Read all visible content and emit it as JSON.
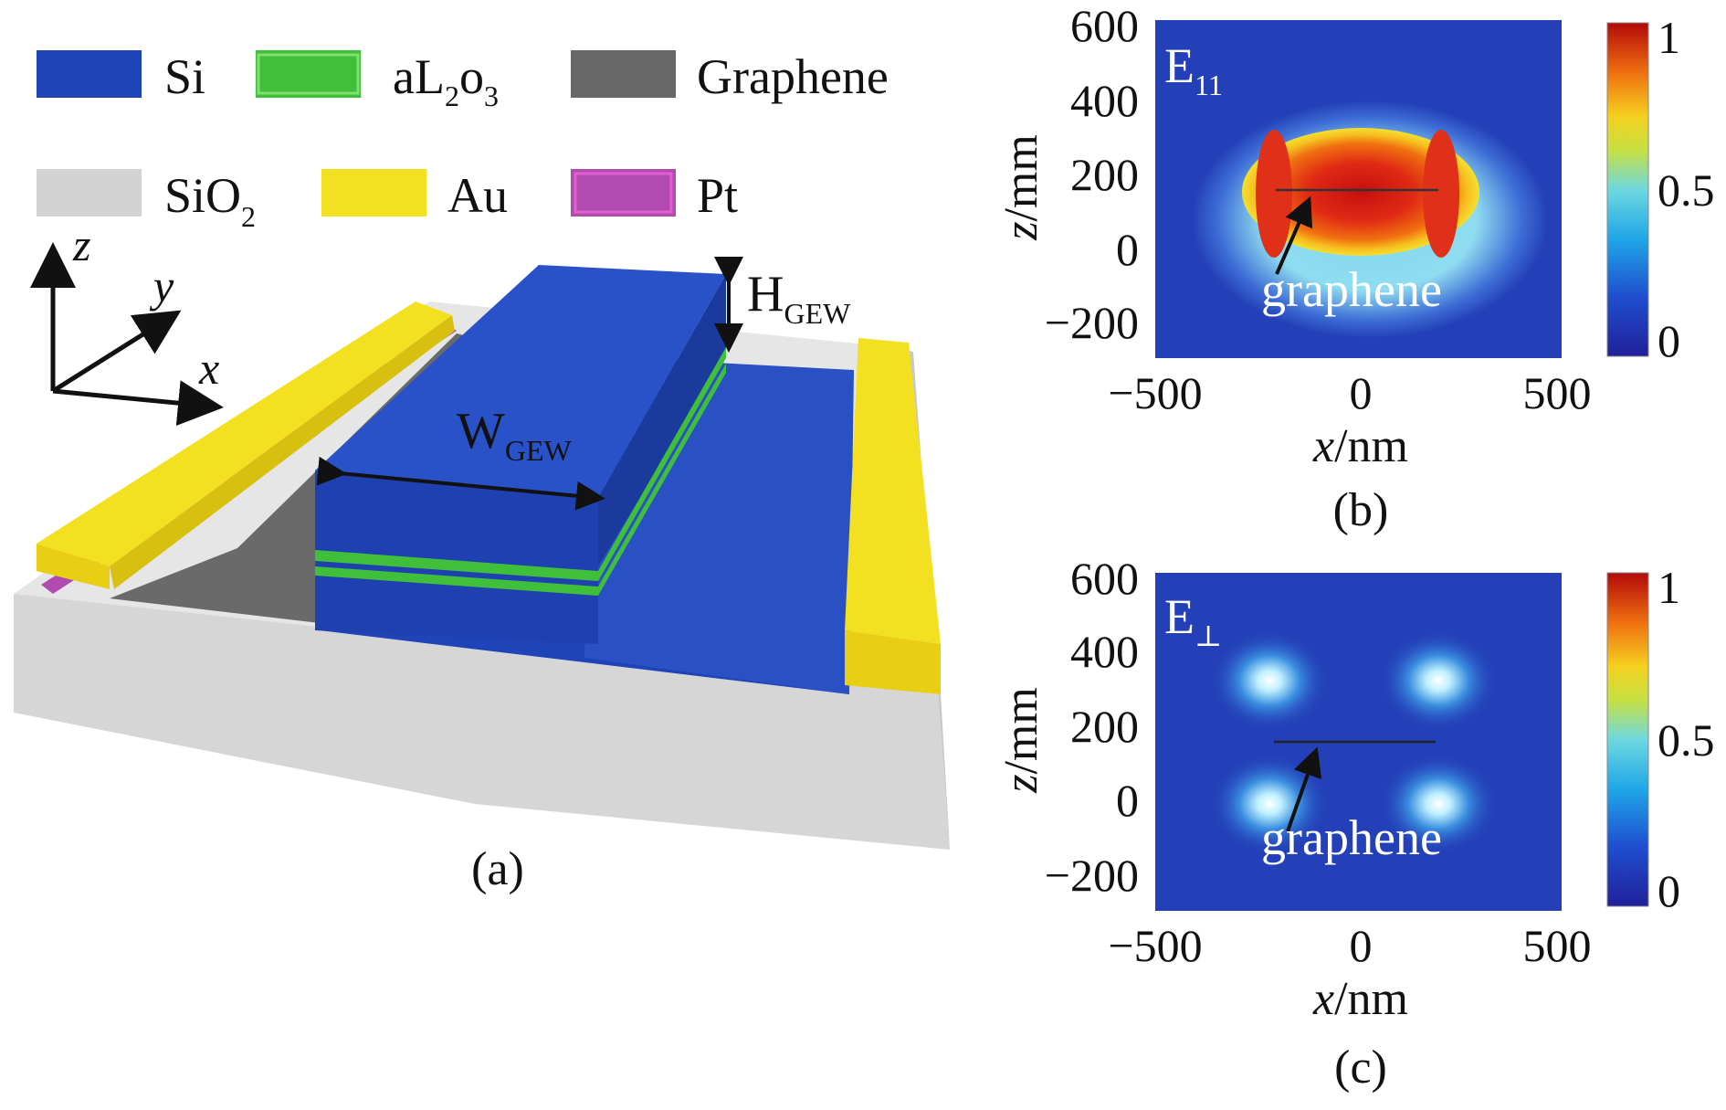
{
  "legend": {
    "items": [
      {
        "label": "Si",
        "sub": "",
        "tail": "",
        "color": "#1f44b8"
      },
      {
        "label": "aL",
        "sub": "2",
        "tail": "o",
        "sub2": "3",
        "color": "#3fbf3a"
      },
      {
        "label": "Graphene",
        "sub": "",
        "tail": "",
        "color": "#676767"
      },
      {
        "label": "SiO",
        "sub": "2",
        "tail": "",
        "color": "#d3d3d3"
      },
      {
        "label": "Au",
        "sub": "",
        "tail": "",
        "color": "#f3e020"
      },
      {
        "label": "Pt",
        "sub": "",
        "tail": "",
        "color": "#b24bb0"
      }
    ]
  },
  "panel_a": {
    "axes": {
      "z": "z",
      "y": "y",
      "x": "x"
    },
    "height_label": "H",
    "height_sub": "GEW",
    "width_label": "W",
    "width_sub": "GEW",
    "caption": "(a)"
  },
  "chart_data": [
    {
      "type": "heatmap",
      "panel": "(b)",
      "title": "E",
      "title_sub": "11",
      "xlabel_var": "x",
      "xlabel_unit": "/nm",
      "ylabel_var": "z",
      "ylabel_unit": "/mm",
      "xlim": [
        -500,
        500
      ],
      "ylim": [
        -300,
        600
      ],
      "xticks": [
        "−500",
        "0",
        "500"
      ],
      "yticks": [
        "600",
        "400",
        "200",
        "0",
        "−200"
      ],
      "colorbar": {
        "ticks": [
          "1",
          "0.5",
          "0"
        ],
        "range": [
          0,
          1
        ]
      },
      "annotation": "graphene",
      "field": "single lobe centred at x=0, z≈150 nm"
    },
    {
      "type": "heatmap",
      "panel": "(c)",
      "title": "E",
      "title_sub": "⊥",
      "xlabel_var": "x",
      "xlabel_unit": "/nm",
      "ylabel_var": "z",
      "ylabel_unit": "/mm",
      "xlim": [
        -500,
        500
      ],
      "ylim": [
        -300,
        600
      ],
      "xticks": [
        "−500",
        "0",
        "500"
      ],
      "yticks": [
        "600",
        "400",
        "200",
        "0",
        "−200"
      ],
      "colorbar": {
        "ticks": [
          "1",
          "0.5",
          "0"
        ],
        "range": [
          0,
          1
        ]
      },
      "annotation": "graphene",
      "field": "four weak hot spots at the corners of the waveguide"
    }
  ]
}
